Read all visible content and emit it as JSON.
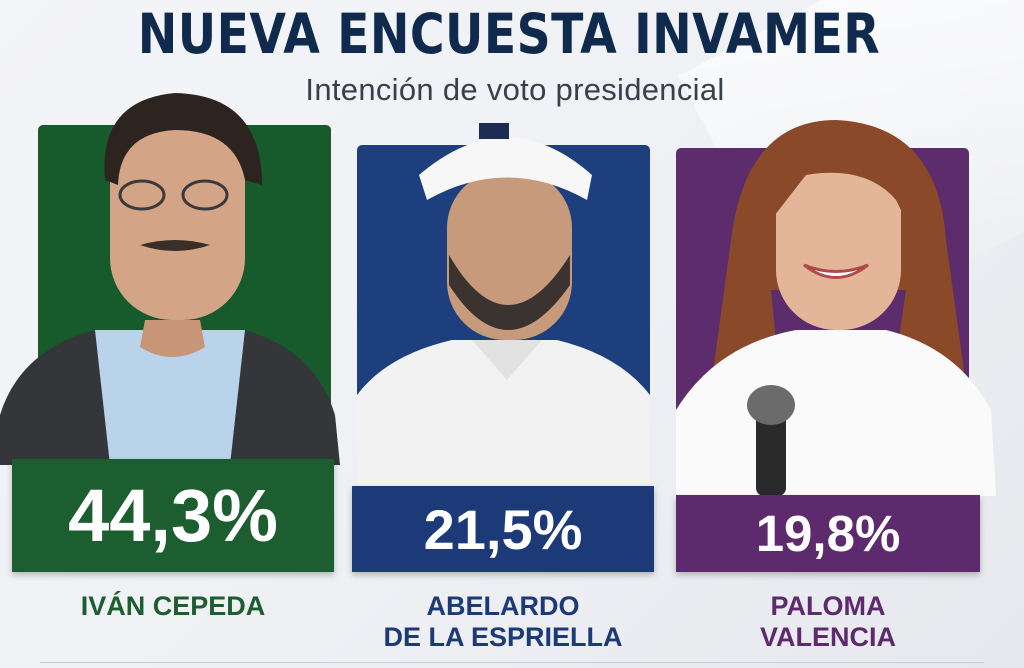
{
  "header": {
    "title": "NUEVA ENCUESTA INVAMER",
    "subtitle": "Intención de voto presidencial"
  },
  "colors": {
    "title": "#0f2a4d",
    "cepeda": "#1c5e2f",
    "espriella": "#1c3a78",
    "valencia": "#5e2a6e"
  },
  "chart_data": {
    "type": "bar",
    "categories": [
      "IVÁN CEPEDA",
      "ABELARDO DE LA ESPRIELLA",
      "PALOMA VALENCIA"
    ],
    "values": [
      44.3,
      21.5,
      19.8
    ],
    "unit": "%",
    "title": "NUEVA ENCUESTA INVAMER",
    "subtitle": "Intención de voto presidencial"
  },
  "candidates": [
    {
      "value_label": "44,3%",
      "name_line1": "IVÁN CEPEDA",
      "name_line2": "",
      "color": "#1c5e2f",
      "panel_color": "#175a2b"
    },
    {
      "value_label": "21,5%",
      "name_line1": "ABELARDO",
      "name_line2": "DE LA ESPRIELLA",
      "color": "#1c3a78",
      "panel_color": "#1e3f7e"
    },
    {
      "value_label": "19,8%",
      "name_line1": "PALOMA",
      "name_line2": "VALENCIA",
      "color": "#5e2a6e",
      "panel_color": "#5c2c6c"
    }
  ]
}
